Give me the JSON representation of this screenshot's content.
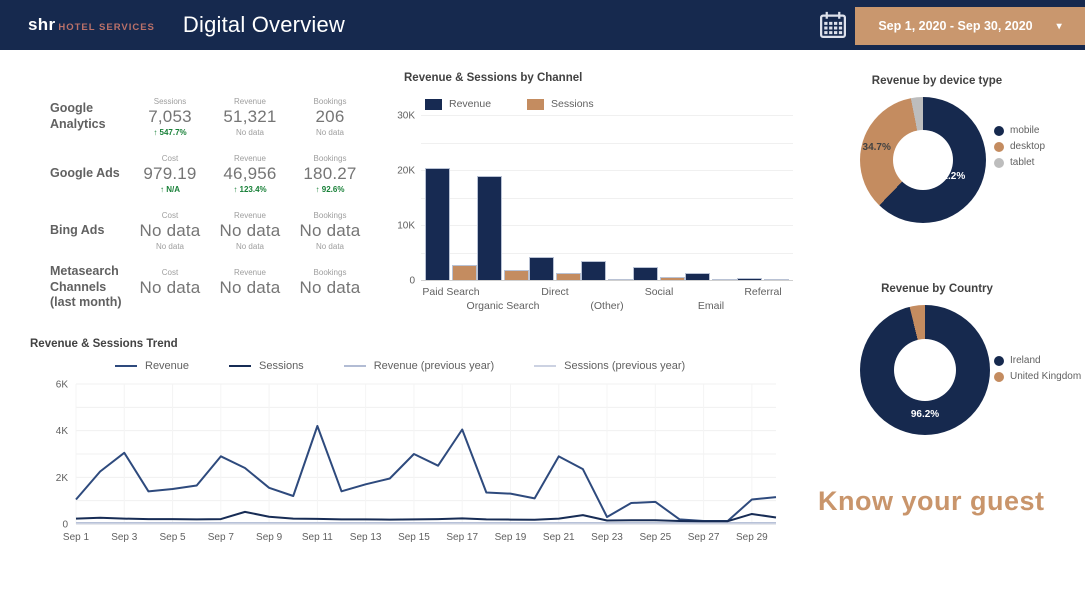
{
  "header": {
    "logo_primary": "shr",
    "logo_secondary": "HOTEL SERVICES",
    "title": "Digital Overview",
    "date_range": "Sep 1, 2020 - Sep 30, 2020",
    "caret": "▾"
  },
  "metrics": {
    "rows": [
      {
        "name": "Google Analytics",
        "cells": [
          {
            "label": "Sessions",
            "value": "7,053",
            "sub": "↑ 547.7%",
            "sub_type": "up"
          },
          {
            "label": "Revenue",
            "value": "51,321",
            "sub": "No data",
            "sub_type": "none"
          },
          {
            "label": "Bookings",
            "value": "206",
            "sub": "No data",
            "sub_type": "none"
          }
        ]
      },
      {
        "name": "Google Ads",
        "cells": [
          {
            "label": "Cost",
            "value": "979.19",
            "sub": "↑ N/A",
            "sub_type": "up"
          },
          {
            "label": "Revenue",
            "value": "46,956",
            "sub": "↑ 123.4%",
            "sub_type": "up"
          },
          {
            "label": "Bookings",
            "value": "180.27",
            "sub": "↑ 92.6%",
            "sub_type": "up"
          }
        ]
      },
      {
        "name": "Bing Ads",
        "cells": [
          {
            "label": "Cost",
            "value": "No data",
            "sub": "No data",
            "sub_type": "none"
          },
          {
            "label": "Revenue",
            "value": "No data",
            "sub": "No data",
            "sub_type": "none"
          },
          {
            "label": "Bookings",
            "value": "No data",
            "sub": "No data",
            "sub_type": "none"
          }
        ]
      },
      {
        "name": "Metasearch Channels (last month)",
        "cells": [
          {
            "label": "Cost",
            "value": "No data",
            "sub": "",
            "sub_type": "none"
          },
          {
            "label": "Revenue",
            "value": "No data",
            "sub": "",
            "sub_type": "none"
          },
          {
            "label": "Bookings",
            "value": "No data",
            "sub": "",
            "sub_type": "none"
          }
        ]
      }
    ]
  },
  "chart_data": [
    {
      "id": "revenue-sessions-by-channel",
      "type": "bar",
      "title": "Revenue & Sessions by Channel",
      "categories": [
        "Paid Search",
        "Organic Search",
        "Direct",
        "(Other)",
        "Social",
        "Email",
        "Referral"
      ],
      "series": [
        {
          "name": "Revenue",
          "color": "#172a52",
          "values": [
            20300,
            18900,
            4200,
            3400,
            2300,
            1200,
            350
          ]
        },
        {
          "name": "Sessions",
          "color": "#c48c60",
          "values": [
            2800,
            1900,
            1250,
            150,
            500,
            100,
            60
          ]
        }
      ],
      "ylim": [
        0,
        30000
      ],
      "ytick_step": 5000,
      "yticks": [
        {
          "v": 0,
          "label": "0"
        },
        {
          "v": 10000,
          "label": "10K"
        },
        {
          "v": 20000,
          "label": "20K"
        },
        {
          "v": 30000,
          "label": "30K"
        }
      ],
      "legend_position": "top"
    },
    {
      "id": "revenue-by-device-type",
      "type": "pie",
      "title": "Revenue by device type",
      "slices": [
        {
          "label": "mobile",
          "value": 62.2,
          "color": "#16294e",
          "display": "62.2%"
        },
        {
          "label": "desktop",
          "value": 34.7,
          "color": "#c48c60",
          "display": "34.7%"
        },
        {
          "label": "tablet",
          "value": 3.1,
          "color": "#bdbdbd",
          "display": ""
        }
      ],
      "legend_position": "right"
    },
    {
      "id": "revenue-by-country",
      "type": "pie",
      "title": "Revenue by Country",
      "slices": [
        {
          "label": "Ireland",
          "value": 96.2,
          "color": "#16294e",
          "display": "96.2%"
        },
        {
          "label": "United Kingdom",
          "value": 3.8,
          "color": "#c48c60",
          "display": ""
        }
      ],
      "legend_position": "right"
    },
    {
      "id": "revenue-sessions-trend",
      "type": "line",
      "title": "Revenue & Sessions Trend",
      "x": [
        "Sep 1",
        "Sep 2",
        "Sep 3",
        "Sep 4",
        "Sep 5",
        "Sep 6",
        "Sep 7",
        "Sep 8",
        "Sep 9",
        "Sep 10",
        "Sep 11",
        "Sep 12",
        "Sep 13",
        "Sep 14",
        "Sep 15",
        "Sep 16",
        "Sep 17",
        "Sep 18",
        "Sep 19",
        "Sep 20",
        "Sep 21",
        "Sep 22",
        "Sep 23",
        "Sep 24",
        "Sep 25",
        "Sep 26",
        "Sep 27",
        "Sep 28",
        "Sep 29",
        "Sep 30"
      ],
      "xticks": [
        "Sep 1",
        "Sep 3",
        "Sep 5",
        "Sep 7",
        "Sep 9",
        "Sep 11",
        "Sep 13",
        "Sep 15",
        "Sep 17",
        "Sep 19",
        "Sep 21",
        "Sep 23",
        "Sep 25",
        "Sep 27",
        "Sep 29"
      ],
      "ylim": [
        0,
        6000
      ],
      "yticks": [
        {
          "v": 0,
          "label": "0"
        },
        {
          "v": 2000,
          "label": "2K"
        },
        {
          "v": 4000,
          "label": "4K"
        },
        {
          "v": 6000,
          "label": "6K"
        }
      ],
      "series": [
        {
          "name": "Revenue (previous year)",
          "color": "#b2bcd4",
          "width": 1.5,
          "values": [
            55,
            55,
            55,
            55,
            55,
            55,
            55,
            55,
            55,
            55,
            55,
            55,
            55,
            55,
            55,
            55,
            55,
            55,
            55,
            55,
            55,
            55,
            55,
            55,
            55,
            55,
            55,
            55,
            55,
            55
          ]
        },
        {
          "name": "Sessions (previous year)",
          "color": "#ccd2e2",
          "width": 1.5,
          "values": [
            20,
            20,
            20,
            20,
            20,
            20,
            20,
            20,
            20,
            20,
            20,
            20,
            20,
            20,
            20,
            20,
            20,
            20,
            20,
            20,
            20,
            20,
            20,
            20,
            20,
            20,
            20,
            20,
            20,
            20
          ]
        },
        {
          "name": "Revenue",
          "color": "#2e4a7d",
          "width": 2,
          "values": [
            1050,
            2250,
            3050,
            1400,
            1500,
            1650,
            2900,
            2400,
            1550,
            1200,
            4200,
            1400,
            1700,
            1950,
            3000,
            2500,
            4050,
            1350,
            1300,
            1100,
            2900,
            2350,
            300,
            900,
            950,
            200,
            130,
            130,
            1050,
            1150
          ]
        },
        {
          "name": "Sessions",
          "color": "#172c55",
          "width": 2,
          "values": [
            230,
            270,
            230,
            210,
            210,
            200,
            210,
            520,
            310,
            230,
            220,
            200,
            200,
            190,
            200,
            210,
            240,
            200,
            190,
            180,
            230,
            380,
            150,
            160,
            160,
            130,
            120,
            120,
            430,
            280
          ]
        }
      ],
      "legend_order": [
        "Revenue",
        "Sessions",
        "Revenue (previous year)",
        "Sessions (previous year)"
      ],
      "legend_position": "top",
      "grid": true
    }
  ],
  "tagline": "Know your guest",
  "colors": {
    "brand_navy": "#16294e",
    "brand_tan": "#c9976e",
    "logo_salmon": "#bb7169",
    "positive_green": "#188038"
  }
}
